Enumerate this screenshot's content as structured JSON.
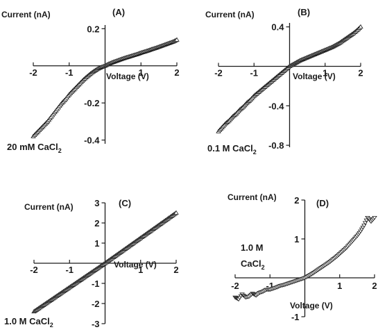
{
  "chart_data": [
    {
      "id": "A",
      "type": "scatter",
      "panel_label": "(A)",
      "ylabel": "Current (nA)",
      "xlabel": "Voltage (V)",
      "condition_label": "20 mM CaCl",
      "condition_subscript": "2",
      "xlim": [
        -2,
        2
      ],
      "ylim": [
        -0.42,
        0.22
      ],
      "xticks": [
        -2,
        -1,
        1,
        2
      ],
      "xtick_labels": [
        "-2",
        "-1",
        "1",
        "2"
      ],
      "yticks": [
        0.2,
        -0.2,
        -0.4
      ],
      "ytick_labels": [
        "0.2",
        "-0.2",
        "-0.4"
      ],
      "x": [
        -2.0,
        -1.9,
        -1.8,
        -1.7,
        -1.6,
        -1.5,
        -1.4,
        -1.3,
        -1.2,
        -1.1,
        -1.0,
        -0.9,
        -0.8,
        -0.7,
        -0.6,
        -0.5,
        -0.4,
        -0.3,
        -0.2,
        -0.1,
        0.0,
        0.1,
        0.2,
        0.3,
        0.4,
        0.5,
        0.6,
        0.7,
        0.8,
        0.9,
        1.0,
        1.1,
        1.2,
        1.3,
        1.4,
        1.5,
        1.6,
        1.7,
        1.8,
        1.9,
        2.0
      ],
      "y": [
        -0.38,
        -0.36,
        -0.34,
        -0.32,
        -0.3,
        -0.275,
        -0.25,
        -0.225,
        -0.2,
        -0.18,
        -0.155,
        -0.135,
        -0.115,
        -0.095,
        -0.075,
        -0.058,
        -0.042,
        -0.028,
        -0.016,
        -0.007,
        0.0,
        0.01,
        0.018,
        0.025,
        0.032,
        0.039,
        0.045,
        0.051,
        0.057,
        0.063,
        0.07,
        0.076,
        0.082,
        0.089,
        0.095,
        0.102,
        0.109,
        0.116,
        0.123,
        0.13,
        0.14
      ]
    },
    {
      "id": "B",
      "type": "scatter",
      "panel_label": "(B)",
      "ylabel": "Current (nA)",
      "xlabel": "Voltage (V)",
      "condition_label": "0.1 M CaCl",
      "condition_subscript": "2",
      "xlim": [
        -2,
        2
      ],
      "ylim": [
        -0.82,
        0.44
      ],
      "xticks": [
        -2,
        -1,
        1,
        2
      ],
      "xtick_labels": [
        "-2",
        "-1",
        "1",
        "2"
      ],
      "yticks": [
        0.4,
        -0.4,
        -0.8
      ],
      "ytick_labels": [
        "0.4",
        "-0.4",
        "-0.8"
      ],
      "x": [
        -2.0,
        -1.9,
        -1.8,
        -1.7,
        -1.6,
        -1.5,
        -1.4,
        -1.3,
        -1.2,
        -1.1,
        -1.0,
        -0.9,
        -0.8,
        -0.7,
        -0.6,
        -0.5,
        -0.4,
        -0.3,
        -0.2,
        -0.1,
        0.0,
        0.1,
        0.2,
        0.3,
        0.4,
        0.5,
        0.6,
        0.7,
        0.8,
        0.9,
        1.0,
        1.1,
        1.2,
        1.3,
        1.4,
        1.5,
        1.6,
        1.7,
        1.8,
        1.9,
        2.0
      ],
      "y": [
        -0.66,
        -0.62,
        -0.58,
        -0.55,
        -0.51,
        -0.48,
        -0.44,
        -0.41,
        -0.37,
        -0.34,
        -0.3,
        -0.27,
        -0.24,
        -0.21,
        -0.18,
        -0.15,
        -0.12,
        -0.09,
        -0.06,
        -0.03,
        0.0,
        0.02,
        0.04,
        0.06,
        0.075,
        0.09,
        0.105,
        0.12,
        0.135,
        0.15,
        0.165,
        0.18,
        0.195,
        0.215,
        0.235,
        0.26,
        0.285,
        0.31,
        0.335,
        0.365,
        0.4
      ]
    },
    {
      "id": "C",
      "type": "scatter",
      "panel_label": "(C)",
      "ylabel": "Current (nA)",
      "xlabel": "Voltage (V)",
      "condition_label": "1.0 M CaCl",
      "condition_subscript": "2",
      "xlim": [
        -2,
        2
      ],
      "ylim": [
        -3,
        3
      ],
      "xticks": [
        -2,
        -1,
        1,
        2
      ],
      "xtick_labels": [
        "-2",
        "-1",
        "1",
        "2"
      ],
      "yticks": [
        3,
        2,
        1,
        -1,
        -2,
        -3
      ],
      "ytick_labels": [
        "3",
        "2",
        "1",
        "-1",
        "-2",
        "-3"
      ],
      "x": [
        -2.0,
        -1.9,
        -1.8,
        -1.7,
        -1.6,
        -1.5,
        -1.4,
        -1.3,
        -1.2,
        -1.1,
        -1.0,
        -0.9,
        -0.8,
        -0.7,
        -0.6,
        -0.5,
        -0.4,
        -0.3,
        -0.2,
        -0.1,
        0.0,
        0.1,
        0.2,
        0.3,
        0.4,
        0.5,
        0.6,
        0.7,
        0.8,
        0.9,
        1.0,
        1.1,
        1.2,
        1.3,
        1.4,
        1.5,
        1.6,
        1.7,
        1.8,
        1.9,
        2.0
      ],
      "y": [
        -2.4,
        -2.28,
        -2.16,
        -2.04,
        -1.92,
        -1.8,
        -1.68,
        -1.56,
        -1.44,
        -1.32,
        -1.2,
        -1.08,
        -0.96,
        -0.84,
        -0.72,
        -0.6,
        -0.48,
        -0.36,
        -0.24,
        -0.12,
        0.0,
        0.125,
        0.25,
        0.375,
        0.5,
        0.625,
        0.75,
        0.875,
        1.0,
        1.125,
        1.25,
        1.375,
        1.5,
        1.625,
        1.75,
        1.875,
        2.0,
        2.125,
        2.25,
        2.375,
        2.5
      ]
    },
    {
      "id": "D",
      "type": "scatter",
      "panel_label": "(D)",
      "ylabel": "Current (nA)",
      "xlabel": "Voltage (V)",
      "condition_label_line1": "1.0 M",
      "condition_label": "CaCl",
      "condition_subscript": "2",
      "xlim": [
        -2,
        2
      ],
      "ylim": [
        -1,
        2
      ],
      "xticks": [
        -2,
        -1,
        1,
        2
      ],
      "xtick_labels": [
        "-2",
        "-1",
        "1",
        "2"
      ],
      "yticks": [
        2,
        1,
        -1
      ],
      "ytick_labels": [
        "2",
        "1",
        "-1"
      ],
      "x": [
        -2.0,
        -1.9,
        -1.8,
        -1.7,
        -1.6,
        -1.5,
        -1.4,
        -1.3,
        -1.2,
        -1.1,
        -1.0,
        -0.9,
        -0.8,
        -0.7,
        -0.6,
        -0.5,
        -0.4,
        -0.3,
        -0.2,
        -0.1,
        0.0,
        0.1,
        0.2,
        0.3,
        0.4,
        0.5,
        0.6,
        0.7,
        0.8,
        0.9,
        1.0,
        1.1,
        1.2,
        1.3,
        1.4,
        1.5,
        1.6,
        1.7,
        1.8,
        1.9,
        2.0
      ],
      "y": [
        -0.5,
        -0.55,
        -0.42,
        -0.5,
        -0.48,
        -0.4,
        -0.45,
        -0.38,
        -0.35,
        -0.3,
        -0.3,
        -0.27,
        -0.24,
        -0.2,
        -0.18,
        -0.15,
        -0.12,
        -0.09,
        -0.06,
        -0.03,
        0.0,
        0.05,
        0.1,
        0.16,
        0.22,
        0.28,
        0.34,
        0.4,
        0.47,
        0.54,
        0.62,
        0.7,
        0.78,
        0.88,
        0.98,
        1.08,
        1.2,
        1.35,
        1.55,
        1.45,
        1.55
      ]
    }
  ]
}
